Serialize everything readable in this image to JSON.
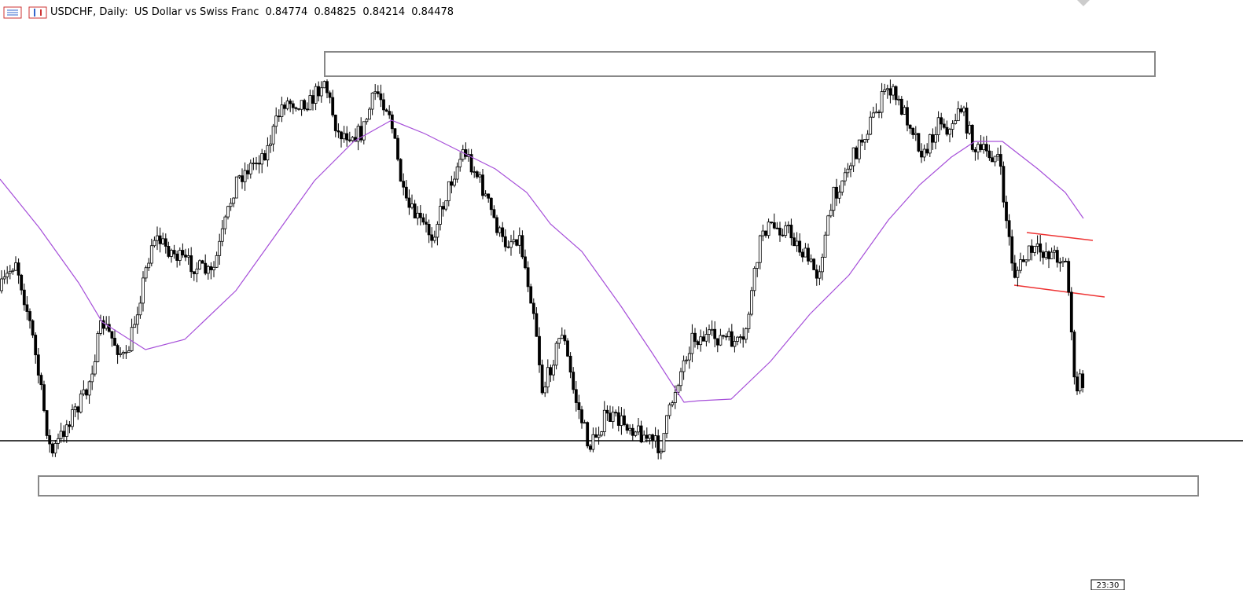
{
  "header": {
    "symbol": "USDCHF, Daily:",
    "description": "US Dollar vs Swiss Franc",
    "ohlc": [
      "0.84774",
      "0.84825",
      "0.84214",
      "0.84478"
    ]
  },
  "time_label": "23:30"
}
